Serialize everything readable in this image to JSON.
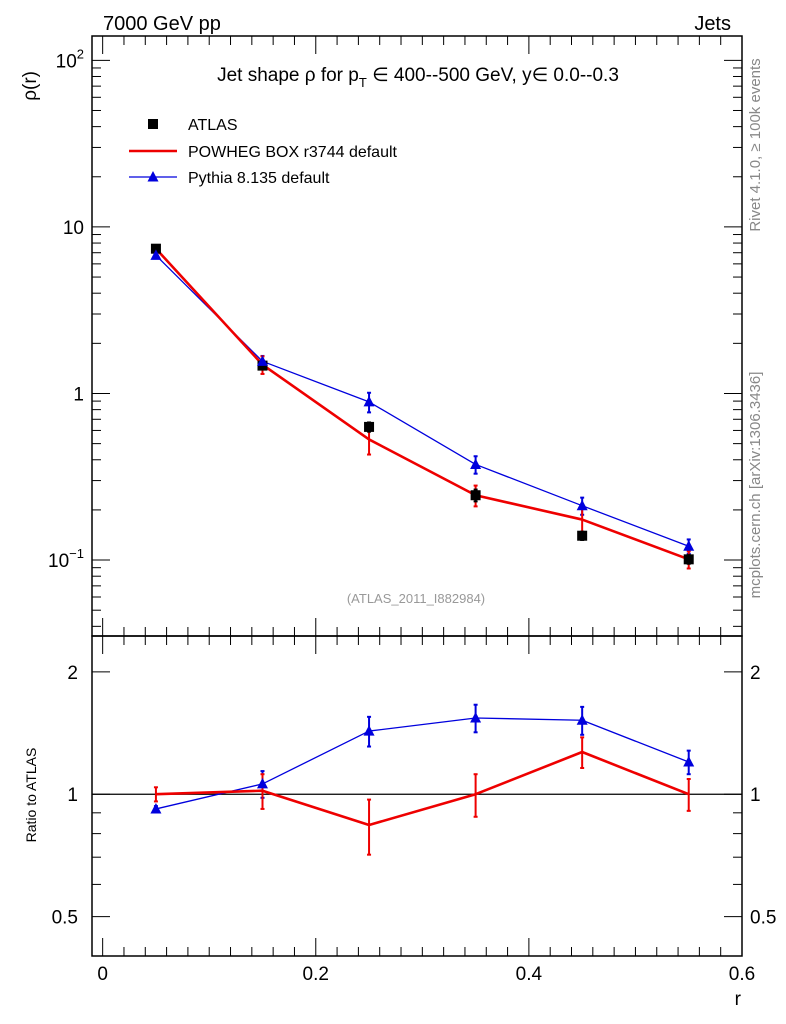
{
  "header": {
    "left": "7000 GeV pp",
    "right": "Jets"
  },
  "side_text": {
    "rivet": "Rivet 4.1.0, ≥ 100k events",
    "source": "mcplots.cern.ch [arXiv:1306.3436]"
  },
  "chart_data": [
    {
      "type": "line",
      "panel": "main",
      "title_parts": {
        "prefix": "Jet shape ρ for p",
        "sub": "T",
        "suffix": " ∈ 400--500 GeV, y∈ 0.0--0.3"
      },
      "ylabel": "ρ(r)",
      "yscale": "log",
      "ylim": [
        0.035,
        140
      ],
      "xlim": [
        -0.01,
        0.6
      ],
      "yticks": [
        {
          "value": 0.1,
          "base": "10",
          "exp": "−1"
        },
        {
          "value": 1,
          "base": "1",
          "exp": ""
        },
        {
          "value": 10,
          "base": "10",
          "exp": ""
        },
        {
          "value": 100,
          "base": "10",
          "exp": "2"
        }
      ],
      "watermark": "(ATLAS_2011_I882984)",
      "x": [
        0.05,
        0.15,
        0.25,
        0.35,
        0.45,
        0.55
      ],
      "series": [
        {
          "name": "ATLAS",
          "color": "#000000",
          "style": "marker-square",
          "values": [
            7.4,
            1.47,
            0.63,
            0.245,
            0.14,
            0.101
          ],
          "err": [
            0.2,
            0.07,
            0.04,
            0.02,
            0.008,
            0.006
          ]
        },
        {
          "name": "POWHEG BOX r3744 default",
          "color": "#ee0000",
          "style": "thick-line",
          "values": [
            7.4,
            1.49,
            0.53,
            0.245,
            0.175,
            0.101
          ],
          "err": [
            0.25,
            0.18,
            0.1,
            0.035,
            0.028,
            0.012
          ]
        },
        {
          "name": "Pythia 8.135 default",
          "color": "#0000dd",
          "style": "line-triangle",
          "values": [
            6.75,
            1.56,
            0.89,
            0.375,
            0.212,
            0.121
          ],
          "err": [
            0.1,
            0.12,
            0.12,
            0.045,
            0.025,
            0.012
          ]
        }
      ]
    },
    {
      "type": "line",
      "panel": "ratio",
      "ylabel": "Ratio to ATLAS",
      "xlabel": "r",
      "yscale": "log",
      "ylim": [
        0.4,
        2.45
      ],
      "xticks": [
        {
          "value": 0,
          "label": "0"
        },
        {
          "value": 0.2,
          "label": "0.2"
        },
        {
          "value": 0.4,
          "label": "0.4"
        },
        {
          "value": 0.6,
          "label": "0.6"
        }
      ],
      "yticks": [
        {
          "value": 0.5,
          "label": "0.5"
        },
        {
          "value": 1,
          "label": "1"
        },
        {
          "value": 2,
          "label": "2"
        }
      ],
      "reference": 1,
      "x": [
        0.05,
        0.15,
        0.25,
        0.35,
        0.45,
        0.55
      ],
      "series": [
        {
          "name": "POWHEG BOX r3744 default",
          "color": "#ee0000",
          "values": [
            1.0,
            1.02,
            0.84,
            1.0,
            1.27,
            1.0
          ],
          "err": [
            0.04,
            0.1,
            0.13,
            0.12,
            0.11,
            0.09
          ]
        },
        {
          "name": "Pythia 8.135 default",
          "color": "#0000dd",
          "values": [
            0.92,
            1.06,
            1.43,
            1.54,
            1.52,
            1.2
          ],
          "err": [
            0.015,
            0.08,
            0.12,
            0.12,
            0.12,
            0.08
          ]
        }
      ]
    }
  ]
}
